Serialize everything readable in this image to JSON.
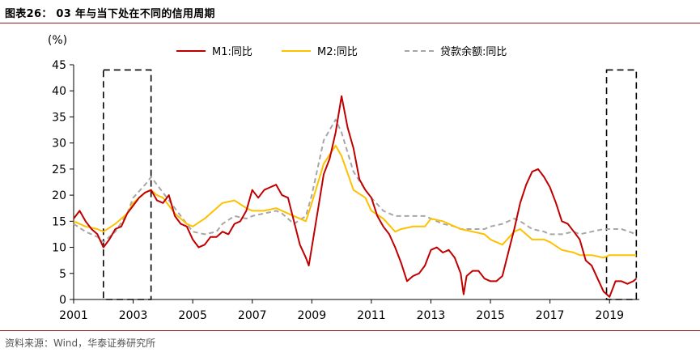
{
  "header": {
    "title": "图表26： 03 年与当下处在不同的信用周期"
  },
  "footer": {
    "source": "资料来源：Wind，华泰证券研究所"
  },
  "chart_data": {
    "type": "line",
    "y_unit_label": "(%)",
    "ylim": [
      0,
      45
    ],
    "y_ticks": [
      0,
      5,
      10,
      15,
      20,
      25,
      30,
      35,
      40,
      45
    ],
    "x_range": [
      2001,
      2020
    ],
    "x_ticks": [
      "2001",
      "2003",
      "2005",
      "2007",
      "2009",
      "2011",
      "2013",
      "2015",
      "2017",
      "2019"
    ],
    "grid": false,
    "legend_position": "top",
    "highlight_periods": [
      {
        "x_start": 2002.0,
        "x_end": 2003.6
      },
      {
        "x_start": 2018.9,
        "x_end": 2019.9
      }
    ],
    "series": [
      {
        "name": "M1:同比",
        "color": "#c00000",
        "style": "solid",
        "points": [
          [
            2001.0,
            15.5
          ],
          [
            2001.2,
            17.0
          ],
          [
            2001.4,
            15.0
          ],
          [
            2001.6,
            13.5
          ],
          [
            2001.8,
            12.5
          ],
          [
            2002.0,
            10.0
          ],
          [
            2002.2,
            11.5
          ],
          [
            2002.4,
            13.5
          ],
          [
            2002.6,
            14.0
          ],
          [
            2002.8,
            16.5
          ],
          [
            2003.0,
            18.0
          ],
          [
            2003.2,
            19.5
          ],
          [
            2003.4,
            20.5
          ],
          [
            2003.6,
            21.0
          ],
          [
            2003.8,
            19.0
          ],
          [
            2004.0,
            18.5
          ],
          [
            2004.2,
            20.0
          ],
          [
            2004.4,
            16.0
          ],
          [
            2004.6,
            14.5
          ],
          [
            2004.8,
            14.0
          ],
          [
            2005.0,
            11.5
          ],
          [
            2005.2,
            10.0
          ],
          [
            2005.4,
            10.5
          ],
          [
            2005.6,
            12.0
          ],
          [
            2005.8,
            12.0
          ],
          [
            2006.0,
            13.0
          ],
          [
            2006.2,
            12.5
          ],
          [
            2006.4,
            14.5
          ],
          [
            2006.6,
            15.0
          ],
          [
            2006.8,
            17.0
          ],
          [
            2007.0,
            21.0
          ],
          [
            2007.2,
            19.5
          ],
          [
            2007.4,
            21.0
          ],
          [
            2007.6,
            21.5
          ],
          [
            2007.8,
            22.0
          ],
          [
            2008.0,
            20.0
          ],
          [
            2008.2,
            19.5
          ],
          [
            2008.4,
            15.0
          ],
          [
            2008.6,
            10.5
          ],
          [
            2008.8,
            8.0
          ],
          [
            2008.9,
            6.5
          ],
          [
            2009.0,
            10.0
          ],
          [
            2009.2,
            17.0
          ],
          [
            2009.4,
            24.0
          ],
          [
            2009.6,
            27.0
          ],
          [
            2009.8,
            32.0
          ],
          [
            2010.0,
            39.0
          ],
          [
            2010.2,
            33.0
          ],
          [
            2010.4,
            29.0
          ],
          [
            2010.6,
            23.0
          ],
          [
            2010.8,
            21.0
          ],
          [
            2011.0,
            19.5
          ],
          [
            2011.2,
            16.0
          ],
          [
            2011.4,
            14.0
          ],
          [
            2011.6,
            12.5
          ],
          [
            2011.8,
            10.0
          ],
          [
            2012.0,
            7.0
          ],
          [
            2012.2,
            3.5
          ],
          [
            2012.4,
            4.5
          ],
          [
            2012.6,
            5.0
          ],
          [
            2012.8,
            6.5
          ],
          [
            2013.0,
            9.5
          ],
          [
            2013.2,
            10.0
          ],
          [
            2013.4,
            9.0
          ],
          [
            2013.6,
            9.5
          ],
          [
            2013.8,
            8.0
          ],
          [
            2014.0,
            5.0
          ],
          [
            2014.1,
            1.0
          ],
          [
            2014.2,
            4.5
          ],
          [
            2014.4,
            5.5
          ],
          [
            2014.6,
            5.5
          ],
          [
            2014.8,
            4.0
          ],
          [
            2015.0,
            3.5
          ],
          [
            2015.2,
            3.5
          ],
          [
            2015.4,
            4.5
          ],
          [
            2015.6,
            9.0
          ],
          [
            2015.8,
            13.5
          ],
          [
            2016.0,
            18.5
          ],
          [
            2016.2,
            22.0
          ],
          [
            2016.4,
            24.5
          ],
          [
            2016.6,
            25.0
          ],
          [
            2016.8,
            23.5
          ],
          [
            2017.0,
            21.5
          ],
          [
            2017.2,
            18.5
          ],
          [
            2017.4,
            15.0
          ],
          [
            2017.6,
            14.5
          ],
          [
            2017.8,
            13.0
          ],
          [
            2018.0,
            11.5
          ],
          [
            2018.2,
            7.5
          ],
          [
            2018.4,
            6.5
          ],
          [
            2018.6,
            4.0
          ],
          [
            2018.8,
            1.5
          ],
          [
            2019.0,
            0.5
          ],
          [
            2019.2,
            3.5
          ],
          [
            2019.4,
            3.5
          ],
          [
            2019.6,
            3.0
          ],
          [
            2019.8,
            3.5
          ],
          [
            2019.9,
            4.0
          ]
        ]
      },
      {
        "name": "M2:同比",
        "color": "#ffc000",
        "style": "solid",
        "points": [
          [
            2001.0,
            15.0
          ],
          [
            2001.4,
            14.0
          ],
          [
            2001.8,
            13.5
          ],
          [
            2002.0,
            13.0
          ],
          [
            2002.4,
            14.5
          ],
          [
            2002.8,
            16.5
          ],
          [
            2003.0,
            18.5
          ],
          [
            2003.4,
            20.5
          ],
          [
            2003.6,
            21.0
          ],
          [
            2003.8,
            20.0
          ],
          [
            2004.0,
            19.5
          ],
          [
            2004.4,
            16.5
          ],
          [
            2004.8,
            14.5
          ],
          [
            2005.0,
            14.0
          ],
          [
            2005.4,
            15.5
          ],
          [
            2005.8,
            17.5
          ],
          [
            2006.0,
            18.5
          ],
          [
            2006.4,
            19.0
          ],
          [
            2006.8,
            17.5
          ],
          [
            2007.0,
            17.0
          ],
          [
            2007.4,
            17.0
          ],
          [
            2007.8,
            17.5
          ],
          [
            2008.0,
            17.0
          ],
          [
            2008.4,
            16.0
          ],
          [
            2008.8,
            15.0
          ],
          [
            2009.0,
            18.5
          ],
          [
            2009.4,
            26.0
          ],
          [
            2009.8,
            29.5
          ],
          [
            2010.0,
            27.5
          ],
          [
            2010.4,
            21.0
          ],
          [
            2010.8,
            19.5
          ],
          [
            2011.0,
            17.0
          ],
          [
            2011.4,
            15.5
          ],
          [
            2011.8,
            13.0
          ],
          [
            2012.0,
            13.5
          ],
          [
            2012.4,
            14.0
          ],
          [
            2012.8,
            14.0
          ],
          [
            2013.0,
            15.5
          ],
          [
            2013.4,
            15.0
          ],
          [
            2013.8,
            14.0
          ],
          [
            2014.0,
            13.5
          ],
          [
            2014.4,
            13.0
          ],
          [
            2014.8,
            12.5
          ],
          [
            2015.0,
            11.5
          ],
          [
            2015.4,
            10.5
          ],
          [
            2015.8,
            13.0
          ],
          [
            2016.0,
            13.5
          ],
          [
            2016.4,
            11.5
          ],
          [
            2016.8,
            11.5
          ],
          [
            2017.0,
            11.0
          ],
          [
            2017.4,
            9.5
          ],
          [
            2017.8,
            9.0
          ],
          [
            2018.0,
            8.5
          ],
          [
            2018.4,
            8.5
          ],
          [
            2018.8,
            8.0
          ],
          [
            2019.0,
            8.5
          ],
          [
            2019.4,
            8.5
          ],
          [
            2019.9,
            8.5
          ]
        ]
      },
      {
        "name": "贷款余额:同比",
        "color": "#a6a6a6",
        "style": "dashed",
        "points": [
          [
            2001.0,
            14.5
          ],
          [
            2001.4,
            13.0
          ],
          [
            2001.8,
            12.0
          ],
          [
            2002.0,
            11.0
          ],
          [
            2002.4,
            13.0
          ],
          [
            2002.8,
            16.5
          ],
          [
            2003.0,
            19.5
          ],
          [
            2003.4,
            22.0
          ],
          [
            2003.6,
            23.5
          ],
          [
            2003.8,
            22.0
          ],
          [
            2004.0,
            20.5
          ],
          [
            2004.4,
            17.5
          ],
          [
            2004.8,
            14.5
          ],
          [
            2005.0,
            13.0
          ],
          [
            2005.4,
            12.5
          ],
          [
            2005.8,
            13.0
          ],
          [
            2006.0,
            14.5
          ],
          [
            2006.4,
            16.0
          ],
          [
            2006.8,
            15.5
          ],
          [
            2007.0,
            16.0
          ],
          [
            2007.4,
            16.5
          ],
          [
            2007.8,
            17.0
          ],
          [
            2008.0,
            16.5
          ],
          [
            2008.4,
            14.5
          ],
          [
            2008.8,
            16.0
          ],
          [
            2009.0,
            20.0
          ],
          [
            2009.4,
            30.5
          ],
          [
            2009.8,
            34.5
          ],
          [
            2010.0,
            32.0
          ],
          [
            2010.4,
            24.5
          ],
          [
            2010.8,
            21.0
          ],
          [
            2011.0,
            19.5
          ],
          [
            2011.4,
            17.0
          ],
          [
            2011.8,
            16.0
          ],
          [
            2012.0,
            16.0
          ],
          [
            2012.4,
            16.0
          ],
          [
            2012.8,
            16.0
          ],
          [
            2013.0,
            15.5
          ],
          [
            2013.4,
            14.5
          ],
          [
            2013.8,
            14.0
          ],
          [
            2014.0,
            13.5
          ],
          [
            2014.4,
            13.5
          ],
          [
            2014.8,
            13.5
          ],
          [
            2015.0,
            14.0
          ],
          [
            2015.4,
            14.5
          ],
          [
            2015.8,
            15.5
          ],
          [
            2016.0,
            15.0
          ],
          [
            2016.4,
            13.5
          ],
          [
            2016.8,
            13.0
          ],
          [
            2017.0,
            12.5
          ],
          [
            2017.4,
            12.5
          ],
          [
            2017.8,
            13.0
          ],
          [
            2018.0,
            12.5
          ],
          [
            2018.4,
            13.0
          ],
          [
            2018.8,
            13.5
          ],
          [
            2019.0,
            13.5
          ],
          [
            2019.4,
            13.5
          ],
          [
            2019.9,
            12.5
          ]
        ]
      }
    ]
  }
}
